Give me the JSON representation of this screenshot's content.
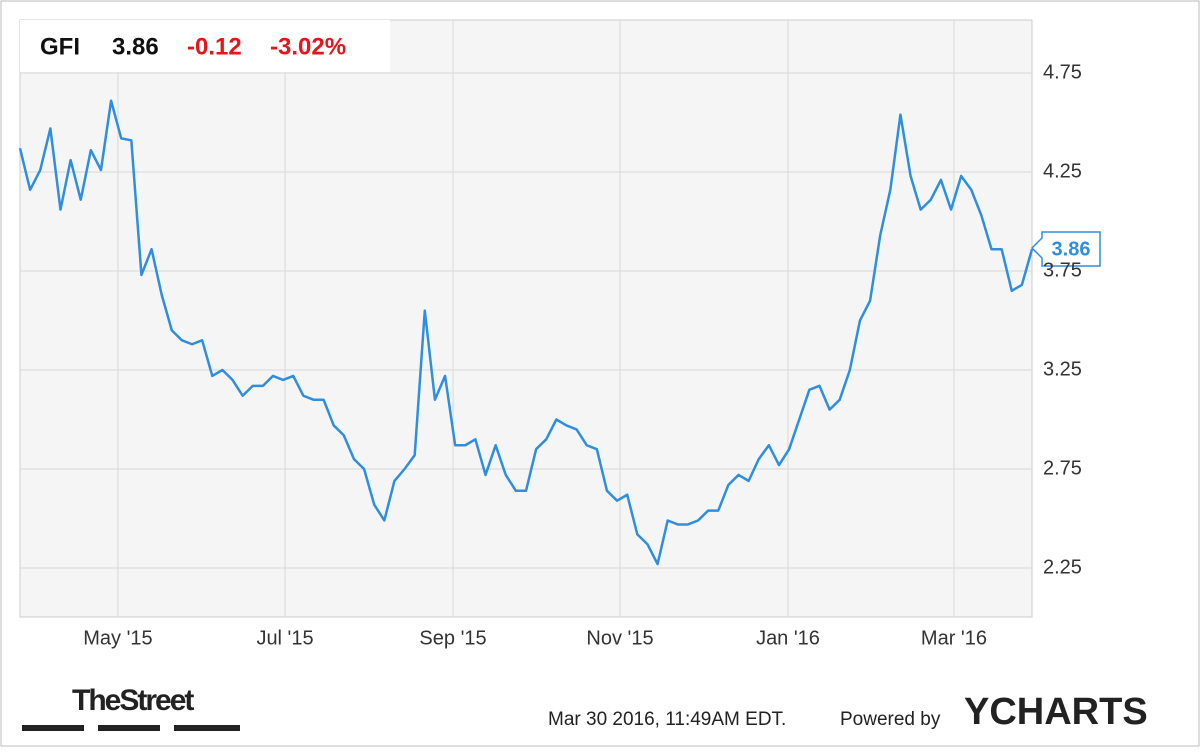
{
  "chart_data": {
    "type": "line",
    "ticker": "GFI",
    "price": "3.86",
    "change": "-0.12",
    "change_pct": "-3.02%",
    "values": [
      4.37,
      4.16,
      4.26,
      4.47,
      4.06,
      4.31,
      4.11,
      4.36,
      4.26,
      4.61,
      4.42,
      4.41,
      3.73,
      3.86,
      3.63,
      3.45,
      3.4,
      3.38,
      3.4,
      3.22,
      3.25,
      3.2,
      3.12,
      3.17,
      3.17,
      3.22,
      3.2,
      3.22,
      3.12,
      3.1,
      3.1,
      2.97,
      2.92,
      2.8,
      2.75,
      2.57,
      2.49,
      2.69,
      2.75,
      2.82,
      3.55,
      3.1,
      3.22,
      2.87,
      2.87,
      2.9,
      2.72,
      2.87,
      2.72,
      2.64,
      2.64,
      2.85,
      2.9,
      3.0,
      2.97,
      2.95,
      2.87,
      2.85,
      2.64,
      2.59,
      2.62,
      2.42,
      2.37,
      2.27,
      2.49,
      2.47,
      2.47,
      2.49,
      2.54,
      2.54,
      2.67,
      2.72,
      2.69,
      2.8,
      2.87,
      2.77,
      2.85,
      3.0,
      3.15,
      3.17,
      3.05,
      3.1,
      3.25,
      3.5,
      3.6,
      3.93,
      4.16,
      4.54,
      4.23,
      4.06,
      4.11,
      4.21,
      4.06,
      4.23,
      4.16,
      4.03,
      3.86,
      3.86,
      3.65,
      3.68,
      3.86
    ],
    "color": "#2f8ee0",
    "xlim": [
      0,
      100
    ],
    "xticks": [
      {
        "value": 9.68,
        "label": "May '15"
      },
      {
        "value": 26.19,
        "label": "Jul '15"
      },
      {
        "value": 42.79,
        "label": "Sep '15"
      },
      {
        "value": 59.29,
        "label": "Nov '15"
      },
      {
        "value": 75.89,
        "label": "Jan '16"
      },
      {
        "value": 92.29,
        "label": "Mar '16"
      }
    ],
    "ylim": [
      2.0,
      5.0
    ],
    "yticks": [
      2.25,
      2.75,
      3.25,
      3.75,
      4.25,
      4.75
    ],
    "grid": true,
    "source": "TheStreet",
    "timestamp": "Mar 30 2016, 11:49AM EDT.",
    "powered_by": "Powered by",
    "brand": "YCHARTS"
  }
}
